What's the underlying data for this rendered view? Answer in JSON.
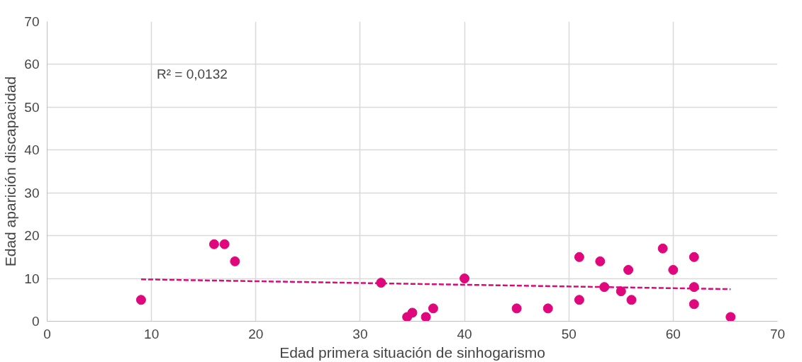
{
  "chart_data": {
    "type": "scatter",
    "xlabel": "Edad primera situación de sinhogarismo",
    "ylabel": "Edad aparición discapacidad",
    "annotations": [
      "R² = 0,0132"
    ],
    "series": [
      {
        "color": "#e0077d",
        "marker": "circle",
        "x": [
          9,
          16,
          17,
          18,
          32,
          34.5,
          35,
          36.3,
          37,
          40,
          45,
          48,
          51,
          51,
          53,
          53.4,
          55,
          55.7,
          56,
          59,
          60,
          62,
          62,
          62,
          65.5
        ],
        "values": [
          5,
          18,
          18,
          14,
          9,
          1,
          2,
          1,
          3,
          10,
          3,
          3,
          15,
          5,
          14,
          8,
          7,
          12,
          5,
          17,
          12,
          15,
          8,
          4,
          1
        ]
      },
      {
        "type": "line",
        "color": "#e0077d",
        "line_style": "dashed",
        "x": [
          9,
          65.5
        ],
        "values": [
          9.8,
          7.5
        ]
      }
    ],
    "xlim": [
      0,
      70
    ],
    "ylim": [
      0,
      70
    ],
    "xticks": [
      0,
      10,
      20,
      30,
      40,
      50,
      60,
      70
    ],
    "yticks": [
      0,
      10,
      20,
      30,
      40,
      50,
      60,
      70
    ],
    "grid": true
  }
}
